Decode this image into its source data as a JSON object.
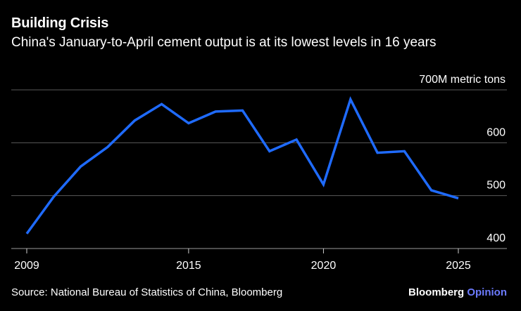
{
  "header": {
    "title": "Building Crisis",
    "subtitle": "China's January-to-April cement output is at its lowest levels in 16 years"
  },
  "footer": {
    "source": "Source: National Bureau of Statistics of China, Bloomberg",
    "brand_main": "Bloomberg",
    "brand_accent": "Opinion"
  },
  "colors": {
    "background": "#000000",
    "line": "#1f6bff",
    "gridline": "#5a5a5a",
    "text": "#ffffff",
    "brand_accent": "#6c7bff"
  },
  "chart_data": {
    "type": "line",
    "title": "Building Crisis",
    "subtitle": "China's January-to-April cement output is at its lowest levels in 16 years",
    "xlabel": "",
    "ylabel": "",
    "unit_label": "700M metric tons",
    "x": [
      2009,
      2010,
      2011,
      2012,
      2013,
      2014,
      2015,
      2016,
      2017,
      2018,
      2019,
      2020,
      2021,
      2022,
      2023,
      2024,
      2025
    ],
    "series": [
      {
        "name": "",
        "values": [
          428,
          498,
          555,
          592,
          642,
          673,
          637,
          659,
          661,
          584,
          606,
          521,
          682,
          581,
          584,
          510,
          495
        ]
      }
    ],
    "xlim": [
      2009,
      2025
    ],
    "ylim": [
      400,
      700
    ],
    "x_ticks": [
      2009,
      2015,
      2020,
      2025
    ],
    "y_ticks": [
      400,
      500,
      600,
      700
    ],
    "y_tick_labels": [
      "400",
      "500",
      "600",
      "700M metric tons"
    ],
    "grid": true,
    "legend": "none"
  }
}
